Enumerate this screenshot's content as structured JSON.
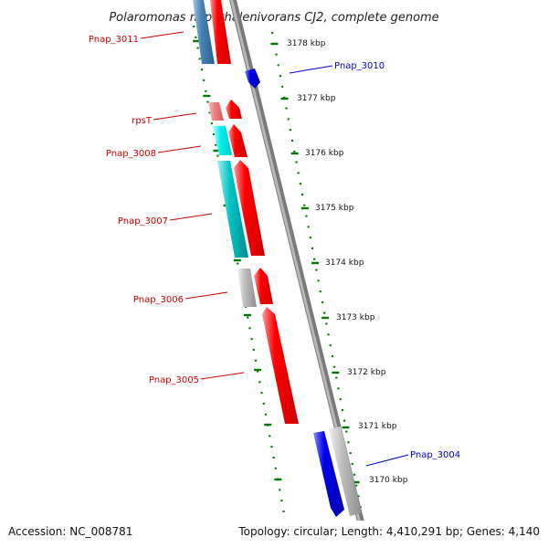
{
  "title": "Polaromonas naphthalenivorans CJ2, complete genome",
  "footer": {
    "accession": "Accession: NC_008781",
    "summary": "Topology: circular; Length: 4,410,291 bp; Genes: 4,140"
  },
  "scale": {
    "ticks": [
      "3178 kbp",
      "3177 kbp",
      "3176 kbp",
      "3175 kbp",
      "3174 kbp",
      "3173 kbp",
      "3172 kbp",
      "3171 kbp",
      "3170 kbp"
    ]
  },
  "genes": [
    {
      "name": "Pnap_3011",
      "label_color": "#cc0000"
    },
    {
      "name": "Pnap_3010",
      "label_color": "#0000cc"
    },
    {
      "name": "rpsT",
      "label_color": "#cc0000"
    },
    {
      "name": "Pnap_3008",
      "label_color": "#cc0000"
    },
    {
      "name": "Pnap_3007",
      "label_color": "#cc0000"
    },
    {
      "name": "Pnap_3006",
      "label_color": "#cc0000"
    },
    {
      "name": "Pnap_3005",
      "label_color": "#cc0000"
    },
    {
      "name": "Pnap_3004",
      "label_color": "#0000cc"
    }
  ],
  "colors": {
    "forward_cds": "#ff0000",
    "reverse_cds": "#0000ee",
    "backbone": "#777777",
    "ticks": "#007700",
    "cog_blue": "#4682b4",
    "cog_pink": "#f08080",
    "cog_cyan": "#00e5e5",
    "cog_teal": "#00bfbf",
    "cog_gray": "#b0b0b0"
  }
}
